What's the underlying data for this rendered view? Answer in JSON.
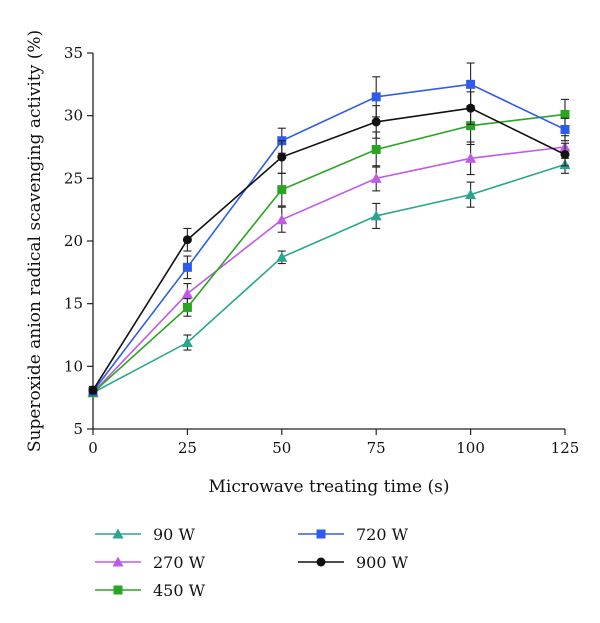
{
  "chart_data": {
    "type": "line",
    "title": "",
    "xlabel": "Microwave treating time (s)",
    "ylabel": "Superoxide anion radical scavenging activity (%)",
    "x": [
      0,
      25,
      50,
      75,
      100,
      125
    ],
    "xticks": [
      "0",
      "25",
      "50",
      "75",
      "100",
      "125"
    ],
    "yticks": [
      "5",
      "10",
      "15",
      "20",
      "25",
      "30",
      "35"
    ],
    "xlim": [
      0,
      125
    ],
    "ylim": [
      5,
      35
    ],
    "grid": false,
    "legend_position": "bottom",
    "series": [
      {
        "name": "90 W",
        "color": "#2aa58e",
        "marker": "triangle",
        "values": [
          7.9,
          11.9,
          18.7,
          22.0,
          23.7,
          26.1
        ],
        "errors": [
          0.3,
          0.6,
          0.5,
          1.0,
          1.0,
          0.7
        ]
      },
      {
        "name": "270 W",
        "color": "#c05ae8",
        "marker": "triangle",
        "values": [
          7.9,
          15.8,
          21.7,
          25.0,
          26.6,
          27.5
        ],
        "errors": [
          0.3,
          0.8,
          1.0,
          1.0,
          1.3,
          0.9
        ]
      },
      {
        "name": "450 W",
        "color": "#2aa521",
        "marker": "square",
        "values": [
          7.9,
          14.7,
          24.1,
          27.3,
          29.2,
          30.1
        ],
        "errors": [
          0.3,
          0.7,
          1.3,
          1.4,
          1.5,
          1.2
        ]
      },
      {
        "name": "720 W",
        "color": "#2f5bea",
        "marker": "square",
        "values": [
          8.0,
          17.9,
          28.0,
          31.5,
          32.5,
          28.9
        ],
        "errors": [
          0.3,
          0.9,
          1.0,
          1.6,
          1.7,
          0.9
        ]
      },
      {
        "name": "900 W",
        "color": "#111111",
        "marker": "circle",
        "values": [
          8.1,
          20.1,
          26.7,
          29.5,
          30.6,
          26.9
        ],
        "errors": [
          0.3,
          0.9,
          1.3,
          1.3,
          1.3,
          0.9
        ]
      }
    ]
  }
}
